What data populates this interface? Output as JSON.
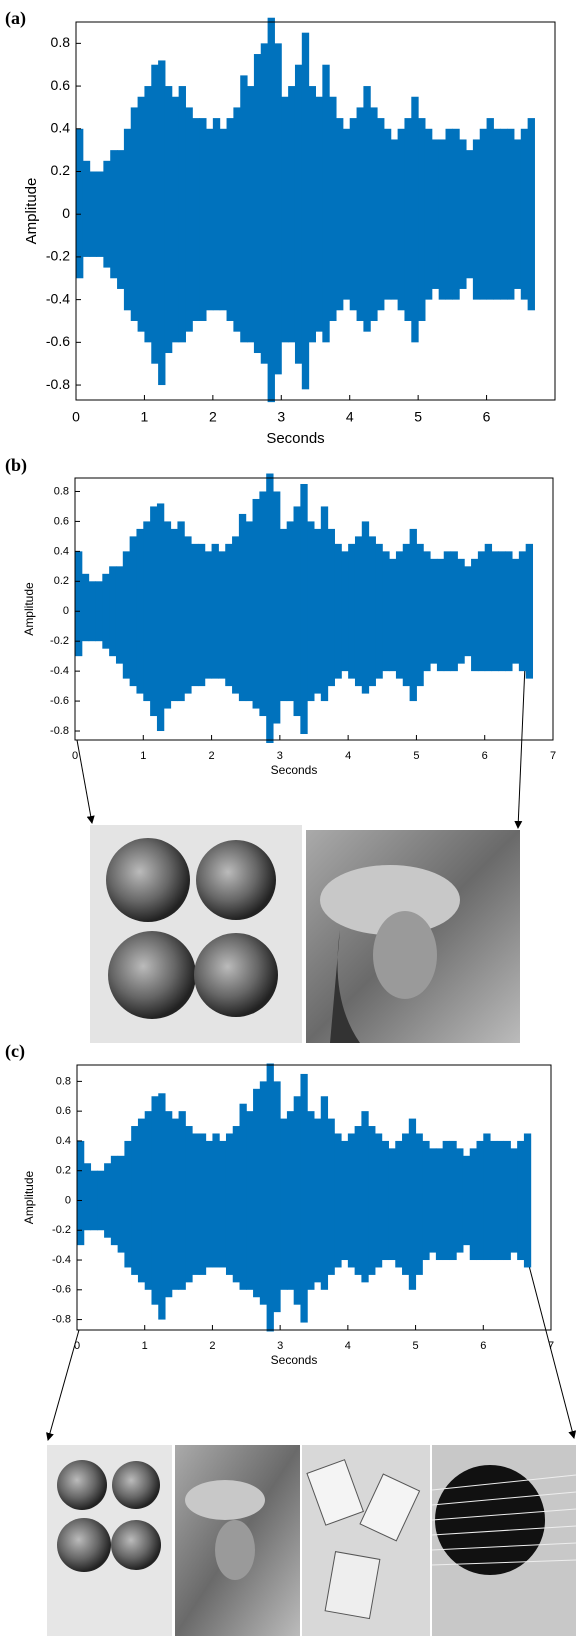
{
  "chart_data": [
    {
      "type": "waveform",
      "label": "(a)",
      "x_label": "Seconds",
      "y_label": "Amplitude",
      "color": "#0072bd",
      "xlim": [
        0,
        7
      ],
      "ylim": [
        -0.87,
        0.9
      ],
      "xticks": [
        0,
        1,
        2,
        3,
        4,
        5,
        6
      ],
      "yticks": [
        -0.8,
        -0.6,
        -0.4,
        -0.2,
        0,
        0.2,
        0.4,
        0.6,
        0.8
      ],
      "x": [
        0,
        0.1,
        0.2,
        0.3,
        0.4,
        0.5,
        0.6,
        0.7,
        0.8,
        0.9,
        1.0,
        1.1,
        1.2,
        1.3,
        1.4,
        1.5,
        1.6,
        1.7,
        1.8,
        1.9,
        2.0,
        2.1,
        2.2,
        2.3,
        2.4,
        2.5,
        2.6,
        2.7,
        2.8,
        2.9,
        3.0,
        3.1,
        3.2,
        3.3,
        3.4,
        3.5,
        3.6,
        3.7,
        3.8,
        3.9,
        4.0,
        4.1,
        4.2,
        4.3,
        4.4,
        4.5,
        4.6,
        4.7,
        4.8,
        4.9,
        5.0,
        5.1,
        5.2,
        5.3,
        5.4,
        5.5,
        5.6,
        5.7,
        5.8,
        5.9,
        6.0,
        6.1,
        6.2,
        6.3,
        6.4,
        6.5,
        6.6
      ],
      "upper": [
        0.4,
        0.25,
        0.2,
        0.2,
        0.25,
        0.3,
        0.3,
        0.4,
        0.5,
        0.55,
        0.6,
        0.7,
        0.72,
        0.6,
        0.55,
        0.6,
        0.5,
        0.45,
        0.45,
        0.4,
        0.45,
        0.4,
        0.45,
        0.5,
        0.65,
        0.6,
        0.75,
        0.8,
        0.92,
        0.8,
        0.55,
        0.6,
        0.7,
        0.85,
        0.6,
        0.55,
        0.7,
        0.55,
        0.45,
        0.4,
        0.45,
        0.5,
        0.6,
        0.5,
        0.45,
        0.4,
        0.35,
        0.4,
        0.45,
        0.55,
        0.45,
        0.4,
        0.35,
        0.35,
        0.4,
        0.4,
        0.35,
        0.3,
        0.35,
        0.4,
        0.45,
        0.4,
        0.4,
        0.4,
        0.35,
        0.4,
        0.45
      ],
      "lower": [
        -0.3,
        -0.2,
        -0.2,
        -0.2,
        -0.25,
        -0.3,
        -0.35,
        -0.45,
        -0.5,
        -0.55,
        -0.6,
        -0.7,
        -0.8,
        -0.65,
        -0.6,
        -0.6,
        -0.55,
        -0.5,
        -0.5,
        -0.45,
        -0.45,
        -0.45,
        -0.5,
        -0.55,
        -0.6,
        -0.6,
        -0.65,
        -0.7,
        -0.88,
        -0.75,
        -0.6,
        -0.6,
        -0.7,
        -0.82,
        -0.6,
        -0.55,
        -0.6,
        -0.5,
        -0.45,
        -0.4,
        -0.45,
        -0.5,
        -0.55,
        -0.5,
        -0.45,
        -0.4,
        -0.4,
        -0.45,
        -0.5,
        -0.6,
        -0.5,
        -0.4,
        -0.35,
        -0.4,
        -0.4,
        -0.4,
        -0.35,
        -0.3,
        -0.4,
        -0.4,
        -0.4,
        -0.4,
        -0.4,
        -0.4,
        -0.35,
        -0.4,
        -0.45
      ]
    },
    {
      "type": "waveform",
      "label": "(b)",
      "x_label": "Seconds",
      "y_label": "Amplitude",
      "color": "#0072bd",
      "xlim": [
        0,
        7
      ],
      "ylim": [
        -0.86,
        0.89
      ],
      "xticks": [
        0,
        1,
        2,
        3,
        4,
        5,
        6,
        7
      ],
      "yticks": [
        -0.8,
        -0.6,
        -0.4,
        -0.2,
        0,
        0.2,
        0.4,
        0.6,
        0.8
      ],
      "x": [
        0,
        0.1,
        0.2,
        0.3,
        0.4,
        0.5,
        0.6,
        0.7,
        0.8,
        0.9,
        1.0,
        1.1,
        1.2,
        1.3,
        1.4,
        1.5,
        1.6,
        1.7,
        1.8,
        1.9,
        2.0,
        2.1,
        2.2,
        2.3,
        2.4,
        2.5,
        2.6,
        2.7,
        2.8,
        2.9,
        3.0,
        3.1,
        3.2,
        3.3,
        3.4,
        3.5,
        3.6,
        3.7,
        3.8,
        3.9,
        4.0,
        4.1,
        4.2,
        4.3,
        4.4,
        4.5,
        4.6,
        4.7,
        4.8,
        4.9,
        5.0,
        5.1,
        5.2,
        5.3,
        5.4,
        5.5,
        5.6,
        5.7,
        5.8,
        5.9,
        6.0,
        6.1,
        6.2,
        6.3,
        6.4,
        6.5,
        6.6
      ],
      "upper": [
        0.4,
        0.25,
        0.2,
        0.2,
        0.25,
        0.3,
        0.3,
        0.4,
        0.5,
        0.55,
        0.6,
        0.7,
        0.72,
        0.6,
        0.55,
        0.6,
        0.5,
        0.45,
        0.45,
        0.4,
        0.45,
        0.4,
        0.45,
        0.5,
        0.65,
        0.6,
        0.75,
        0.8,
        0.92,
        0.8,
        0.55,
        0.6,
        0.7,
        0.85,
        0.6,
        0.55,
        0.7,
        0.55,
        0.45,
        0.4,
        0.45,
        0.5,
        0.6,
        0.5,
        0.45,
        0.4,
        0.35,
        0.4,
        0.45,
        0.55,
        0.45,
        0.4,
        0.35,
        0.35,
        0.4,
        0.4,
        0.35,
        0.3,
        0.35,
        0.4,
        0.45,
        0.4,
        0.4,
        0.4,
        0.35,
        0.4,
        0.45
      ],
      "lower": [
        -0.3,
        -0.2,
        -0.2,
        -0.2,
        -0.25,
        -0.3,
        -0.35,
        -0.45,
        -0.5,
        -0.55,
        -0.6,
        -0.7,
        -0.8,
        -0.65,
        -0.6,
        -0.6,
        -0.55,
        -0.5,
        -0.5,
        -0.45,
        -0.45,
        -0.45,
        -0.5,
        -0.55,
        -0.6,
        -0.6,
        -0.65,
        -0.7,
        -0.88,
        -0.75,
        -0.6,
        -0.6,
        -0.7,
        -0.82,
        -0.6,
        -0.55,
        -0.6,
        -0.5,
        -0.45,
        -0.4,
        -0.45,
        -0.5,
        -0.55,
        -0.5,
        -0.45,
        -0.4,
        -0.4,
        -0.45,
        -0.5,
        -0.6,
        -0.5,
        -0.4,
        -0.35,
        -0.4,
        -0.4,
        -0.4,
        -0.35,
        -0.3,
        -0.4,
        -0.4,
        -0.4,
        -0.4,
        -0.4,
        -0.4,
        -0.35,
        -0.4,
        -0.45
      ]
    },
    {
      "type": "waveform",
      "label": "(c)",
      "x_label": "Seconds",
      "y_label": "Amplitude",
      "color": "#0072bd",
      "xlim": [
        0,
        7
      ],
      "ylim": [
        -0.87,
        0.91
      ],
      "xticks": [
        0,
        1,
        2,
        3,
        4,
        5,
        6,
        7
      ],
      "yticks": [
        -0.8,
        -0.6,
        -0.4,
        -0.2,
        0,
        0.2,
        0.4,
        0.6,
        0.8
      ],
      "x": [
        0,
        0.1,
        0.2,
        0.3,
        0.4,
        0.5,
        0.6,
        0.7,
        0.8,
        0.9,
        1.0,
        1.1,
        1.2,
        1.3,
        1.4,
        1.5,
        1.6,
        1.7,
        1.8,
        1.9,
        2.0,
        2.1,
        2.2,
        2.3,
        2.4,
        2.5,
        2.6,
        2.7,
        2.8,
        2.9,
        3.0,
        3.1,
        3.2,
        3.3,
        3.4,
        3.5,
        3.6,
        3.7,
        3.8,
        3.9,
        4.0,
        4.1,
        4.2,
        4.3,
        4.4,
        4.5,
        4.6,
        4.7,
        4.8,
        4.9,
        5.0,
        5.1,
        5.2,
        5.3,
        5.4,
        5.5,
        5.6,
        5.7,
        5.8,
        5.9,
        6.0,
        6.1,
        6.2,
        6.3,
        6.4,
        6.5,
        6.6
      ],
      "upper": [
        0.4,
        0.25,
        0.2,
        0.2,
        0.25,
        0.3,
        0.3,
        0.4,
        0.5,
        0.55,
        0.6,
        0.7,
        0.72,
        0.6,
        0.55,
        0.6,
        0.5,
        0.45,
        0.45,
        0.4,
        0.45,
        0.4,
        0.45,
        0.5,
        0.65,
        0.6,
        0.75,
        0.8,
        0.92,
        0.8,
        0.55,
        0.6,
        0.7,
        0.85,
        0.6,
        0.55,
        0.7,
        0.55,
        0.45,
        0.4,
        0.45,
        0.5,
        0.6,
        0.5,
        0.45,
        0.4,
        0.35,
        0.4,
        0.45,
        0.55,
        0.45,
        0.4,
        0.35,
        0.35,
        0.4,
        0.4,
        0.35,
        0.3,
        0.35,
        0.4,
        0.45,
        0.4,
        0.4,
        0.4,
        0.35,
        0.4,
        0.45
      ],
      "lower": [
        -0.3,
        -0.2,
        -0.2,
        -0.2,
        -0.25,
        -0.3,
        -0.35,
        -0.45,
        -0.5,
        -0.55,
        -0.6,
        -0.7,
        -0.8,
        -0.65,
        -0.6,
        -0.6,
        -0.55,
        -0.5,
        -0.5,
        -0.45,
        -0.45,
        -0.45,
        -0.5,
        -0.55,
        -0.6,
        -0.6,
        -0.65,
        -0.7,
        -0.88,
        -0.75,
        -0.6,
        -0.6,
        -0.7,
        -0.82,
        -0.6,
        -0.55,
        -0.6,
        -0.5,
        -0.45,
        -0.4,
        -0.45,
        -0.5,
        -0.55,
        -0.5,
        -0.45,
        -0.4,
        -0.4,
        -0.45,
        -0.5,
        -0.6,
        -0.5,
        -0.4,
        -0.35,
        -0.4,
        -0.4,
        -0.4,
        -0.35,
        -0.3,
        -0.4,
        -0.4,
        -0.4,
        -0.4,
        -0.4,
        -0.4,
        -0.35,
        -0.4,
        -0.45
      ]
    }
  ]
}
